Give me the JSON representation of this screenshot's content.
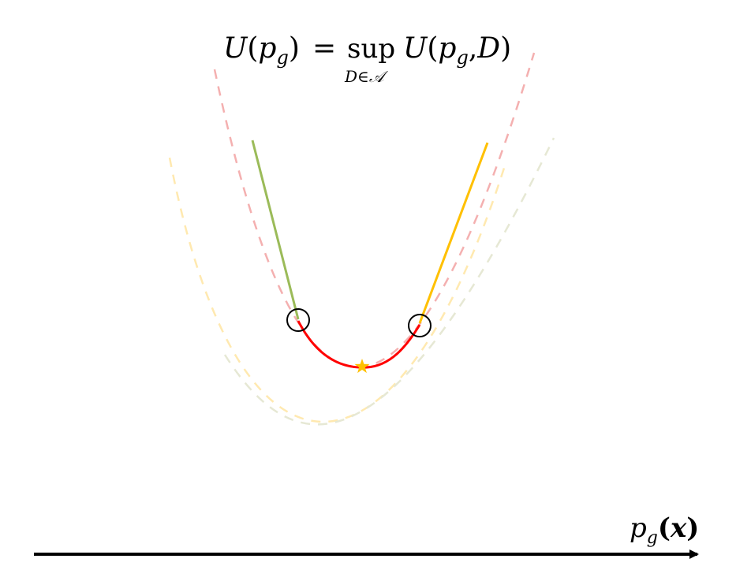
{
  "formula": {
    "lhs_func": "U",
    "lhs_open": "(",
    "lhs_var": "p",
    "lhs_sub": "g",
    "lhs_close": ")",
    "equals": "=",
    "operator": "sup",
    "operator_sub_var": "D",
    "operator_sub_in": "∈",
    "operator_sub_set": "𝒜",
    "rhs_func": "U",
    "rhs_open": "(",
    "rhs_var": "p",
    "rhs_sub": "g",
    "rhs_comma": ",",
    "rhs_D": "D",
    "rhs_close": ")"
  },
  "axis": {
    "label_var": "p",
    "label_sub": "g",
    "label_open": "(",
    "label_x": "x",
    "label_close": ")"
  },
  "colors": {
    "green": "#9bbb59",
    "orange": "#ffc000",
    "red": "#ff0000",
    "pink_dashed": "#f4b0b0",
    "beige_dashed": "#e6e8d4",
    "yellow_dashed": "#ffe9b0",
    "star": "#ffc000",
    "axis": "#000000"
  }
}
